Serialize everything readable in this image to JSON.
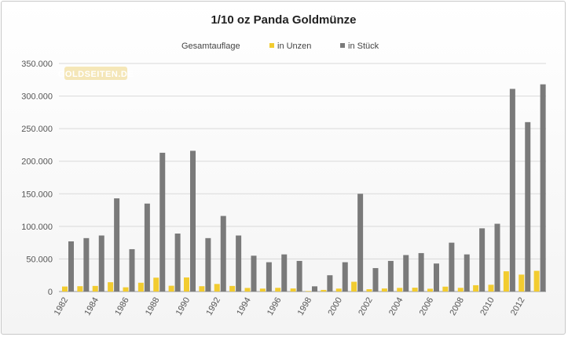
{
  "chart_data": {
    "type": "bar",
    "title": "1/10 oz Panda Goldmünze",
    "legend": {
      "placement": "top",
      "entries": [
        {
          "name": "Gesamtauflage",
          "color": "#e8e8e8"
        },
        {
          "name": "in Unzen",
          "color": "#f2cc30"
        },
        {
          "name": "in Stück",
          "color": "#7a7a7a"
        }
      ]
    },
    "watermark": "GOLDSEITEN.DE",
    "grid": true,
    "ylim": [
      0,
      350000
    ],
    "yticks": [
      "0",
      "50.000",
      "100.000",
      "150.000",
      "200.000",
      "250.000",
      "300.000",
      "350.000"
    ],
    "ytick_values": [
      0,
      50000,
      100000,
      150000,
      200000,
      250000,
      300000,
      350000
    ],
    "categories": [
      "1982",
      "1983",
      "1984",
      "1985",
      "1986",
      "1987",
      "1988",
      "1989",
      "1990",
      "1991",
      "1992",
      "1993",
      "1994",
      "1995",
      "1996",
      "1997",
      "1998",
      "1999",
      "2000",
      "2001",
      "2002",
      "2003",
      "2004",
      "2005",
      "2006",
      "2007",
      "2008",
      "2009",
      "2010",
      "2011",
      "2012",
      "2013"
    ],
    "xtick_labels": [
      "1982",
      "",
      "1984",
      "",
      "1986",
      "",
      "1988",
      "",
      "1990",
      "",
      "1992",
      "",
      "1994",
      "",
      "1996",
      "",
      "1998",
      "",
      "2000",
      "",
      "2002",
      "",
      "2004",
      "",
      "2006",
      "",
      "2008",
      "",
      "2010",
      "",
      "2012",
      ""
    ],
    "series": [
      {
        "name": "in Unzen",
        "color": "#f2cc30",
        "values": [
          7700,
          8200,
          8600,
          14300,
          6500,
          13500,
          21300,
          8900,
          21600,
          8200,
          11600,
          8600,
          5500,
          4500,
          5700,
          4700,
          800,
          2500,
          4500,
          15000,
          3600,
          4700,
          5600,
          5900,
          4300,
          7500,
          5700,
          9700,
          10400,
          31100,
          26000,
          31800
        ]
      },
      {
        "name": "in Stück",
        "color": "#7a7a7a",
        "values": [
          77000,
          82000,
          86000,
          143000,
          65000,
          135000,
          213000,
          89000,
          216000,
          82000,
          116000,
          86000,
          55000,
          45000,
          57000,
          47000,
          8000,
          25000,
          45000,
          150000,
          36000,
          47000,
          56000,
          59000,
          43000,
          75000,
          57000,
          97000,
          104000,
          311000,
          260000,
          318000
        ]
      }
    ]
  }
}
